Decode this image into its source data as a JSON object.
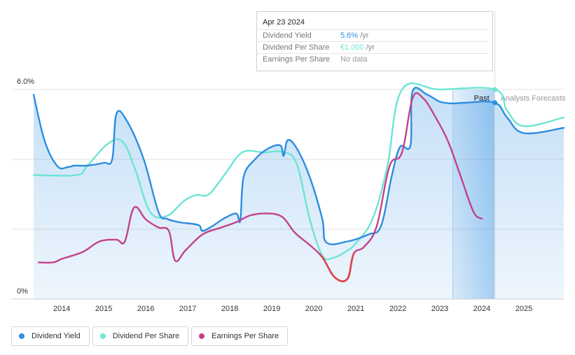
{
  "chart_data": {
    "type": "line",
    "y_axis": {
      "labels": [
        "6.0%",
        "0%"
      ],
      "range": [
        0,
        6.0
      ]
    },
    "x_axis": {
      "range": [
        2013.33,
        2025.95
      ],
      "ticks": [
        {
          "value": 2014,
          "label": "2014"
        },
        {
          "value": 2015,
          "label": "2015"
        },
        {
          "value": 2016,
          "label": "2016"
        },
        {
          "value": 2017,
          "label": "2017"
        },
        {
          "value": 2018,
          "label": "2018"
        },
        {
          "value": 2019,
          "label": "2019"
        },
        {
          "value": 2020,
          "label": "2020"
        },
        {
          "value": 2021,
          "label": "2021"
        },
        {
          "value": 2022,
          "label": "2022"
        },
        {
          "value": 2023,
          "label": "2023"
        },
        {
          "value": 2024,
          "label": "2024"
        },
        {
          "value": 2025,
          "label": "2025"
        }
      ]
    },
    "past_label": "Past",
    "forecast_label": "Analysts Forecasts",
    "past_highlight_range": [
      2023.31,
      2024.31
    ],
    "divider_x": 2024.31,
    "series": [
      {
        "name": "Dividend Yield",
        "color": "#2d8de0",
        "units": "%",
        "points": [
          [
            2013.33,
            5.85
          ],
          [
            2013.6,
            4.5
          ],
          [
            2013.9,
            3.8
          ],
          [
            2014.15,
            3.78
          ],
          [
            2014.3,
            3.82
          ],
          [
            2014.6,
            3.82
          ],
          [
            2015.0,
            3.9
          ],
          [
            2015.2,
            4.0
          ],
          [
            2015.3,
            5.3
          ],
          [
            2015.55,
            5.1
          ],
          [
            2015.95,
            4.0
          ],
          [
            2016.3,
            2.5
          ],
          [
            2016.5,
            2.3
          ],
          [
            2016.8,
            2.2
          ],
          [
            2017.25,
            2.12
          ],
          [
            2017.35,
            1.95
          ],
          [
            2017.6,
            2.1
          ],
          [
            2017.85,
            2.3
          ],
          [
            2018.15,
            2.45
          ],
          [
            2018.25,
            2.25
          ],
          [
            2018.33,
            3.5
          ],
          [
            2018.6,
            4.0
          ],
          [
            2018.9,
            4.3
          ],
          [
            2019.2,
            4.4
          ],
          [
            2019.28,
            4.1
          ],
          [
            2019.38,
            4.55
          ],
          [
            2019.6,
            4.3
          ],
          [
            2019.9,
            3.5
          ],
          [
            2020.2,
            2.3
          ],
          [
            2020.3,
            1.62
          ],
          [
            2020.8,
            1.65
          ],
          [
            2021.3,
            1.85
          ],
          [
            2021.6,
            2.1
          ],
          [
            2021.85,
            3.5
          ],
          [
            2022.05,
            4.35
          ],
          [
            2022.3,
            4.4
          ],
          [
            2022.35,
            5.95
          ],
          [
            2022.7,
            5.85
          ],
          [
            2023.0,
            5.65
          ],
          [
            2023.3,
            5.6
          ],
          [
            2023.6,
            5.62
          ],
          [
            2024.31,
            5.62
          ],
          [
            2024.6,
            5.2
          ],
          [
            2025.0,
            4.75
          ],
          [
            2025.95,
            4.9
          ]
        ]
      },
      {
        "name": "Dividend Per Share",
        "color": "#6ce5d3",
        "units": "%",
        "points": [
          [
            2013.33,
            3.55
          ],
          [
            2014.35,
            3.55
          ],
          [
            2014.6,
            3.8
          ],
          [
            2015.1,
            4.45
          ],
          [
            2015.45,
            4.5
          ],
          [
            2015.75,
            3.7
          ],
          [
            2016.1,
            2.5
          ],
          [
            2016.5,
            2.38
          ],
          [
            2016.9,
            2.8
          ],
          [
            2017.2,
            2.98
          ],
          [
            2017.5,
            3.0
          ],
          [
            2017.9,
            3.6
          ],
          [
            2018.3,
            4.2
          ],
          [
            2018.8,
            4.2
          ],
          [
            2019.3,
            4.2
          ],
          [
            2019.6,
            3.85
          ],
          [
            2019.9,
            2.3
          ],
          [
            2020.2,
            1.25
          ],
          [
            2020.45,
            1.18
          ],
          [
            2020.75,
            1.35
          ],
          [
            2021.0,
            1.6
          ],
          [
            2021.4,
            2.3
          ],
          [
            2021.75,
            3.8
          ],
          [
            2022.1,
            6.0
          ],
          [
            2023.0,
            6.0
          ],
          [
            2024.31,
            6.0
          ],
          [
            2024.6,
            5.4
          ],
          [
            2025.0,
            4.95
          ],
          [
            2025.95,
            5.2
          ]
        ]
      },
      {
        "name": "Earnings Per Share",
        "color": "#c2428a",
        "alt_color": "#e0434a",
        "units": "%",
        "points": [
          [
            2013.45,
            1.05
          ],
          [
            2013.8,
            1.05
          ],
          [
            2014.0,
            1.15
          ],
          [
            2014.5,
            1.35
          ],
          [
            2014.9,
            1.65
          ],
          [
            2015.3,
            1.7
          ],
          [
            2015.5,
            1.65
          ],
          [
            2015.72,
            2.62
          ],
          [
            2016.0,
            2.28
          ],
          [
            2016.3,
            2.05
          ],
          [
            2016.55,
            1.95
          ],
          [
            2016.7,
            1.1
          ],
          [
            2016.95,
            1.4
          ],
          [
            2017.35,
            1.85
          ],
          [
            2017.8,
            2.05
          ],
          [
            2018.15,
            2.2
          ],
          [
            2018.5,
            2.4
          ],
          [
            2018.9,
            2.45
          ],
          [
            2019.25,
            2.35
          ],
          [
            2019.55,
            1.9
          ],
          [
            2019.9,
            1.55
          ],
          [
            2020.2,
            1.2
          ],
          [
            2020.5,
            0.62
          ],
          [
            2020.8,
            0.58
          ],
          [
            2020.95,
            1.3
          ],
          [
            2021.2,
            1.5
          ],
          [
            2021.5,
            2.1
          ],
          [
            2021.8,
            3.8
          ],
          [
            2022.1,
            4.2
          ],
          [
            2022.35,
            5.75
          ],
          [
            2022.6,
            5.75
          ],
          [
            2022.9,
            5.2
          ],
          [
            2023.2,
            4.5
          ],
          [
            2023.5,
            3.5
          ],
          [
            2023.8,
            2.5
          ],
          [
            2024.0,
            2.3
          ]
        ]
      }
    ]
  },
  "tooltip": {
    "date": "Apr 23 2024",
    "rows": [
      {
        "label": "Dividend Yield",
        "value": "5.6%",
        "suffix": " /yr",
        "color": "#2d8de0"
      },
      {
        "label": "Dividend Per Share",
        "value": "€1.000",
        "suffix": " /yr",
        "color": "#6ce5d3"
      },
      {
        "label": "Earnings Per Share",
        "value": "No data",
        "suffix": "",
        "color": "#999999"
      }
    ]
  },
  "legend": [
    {
      "label": "Dividend Yield",
      "color": "#2d8de0"
    },
    {
      "label": "Dividend Per Share",
      "color": "#6ce5d3"
    },
    {
      "label": "Earnings Per Share",
      "color": "#c2428a"
    }
  ]
}
